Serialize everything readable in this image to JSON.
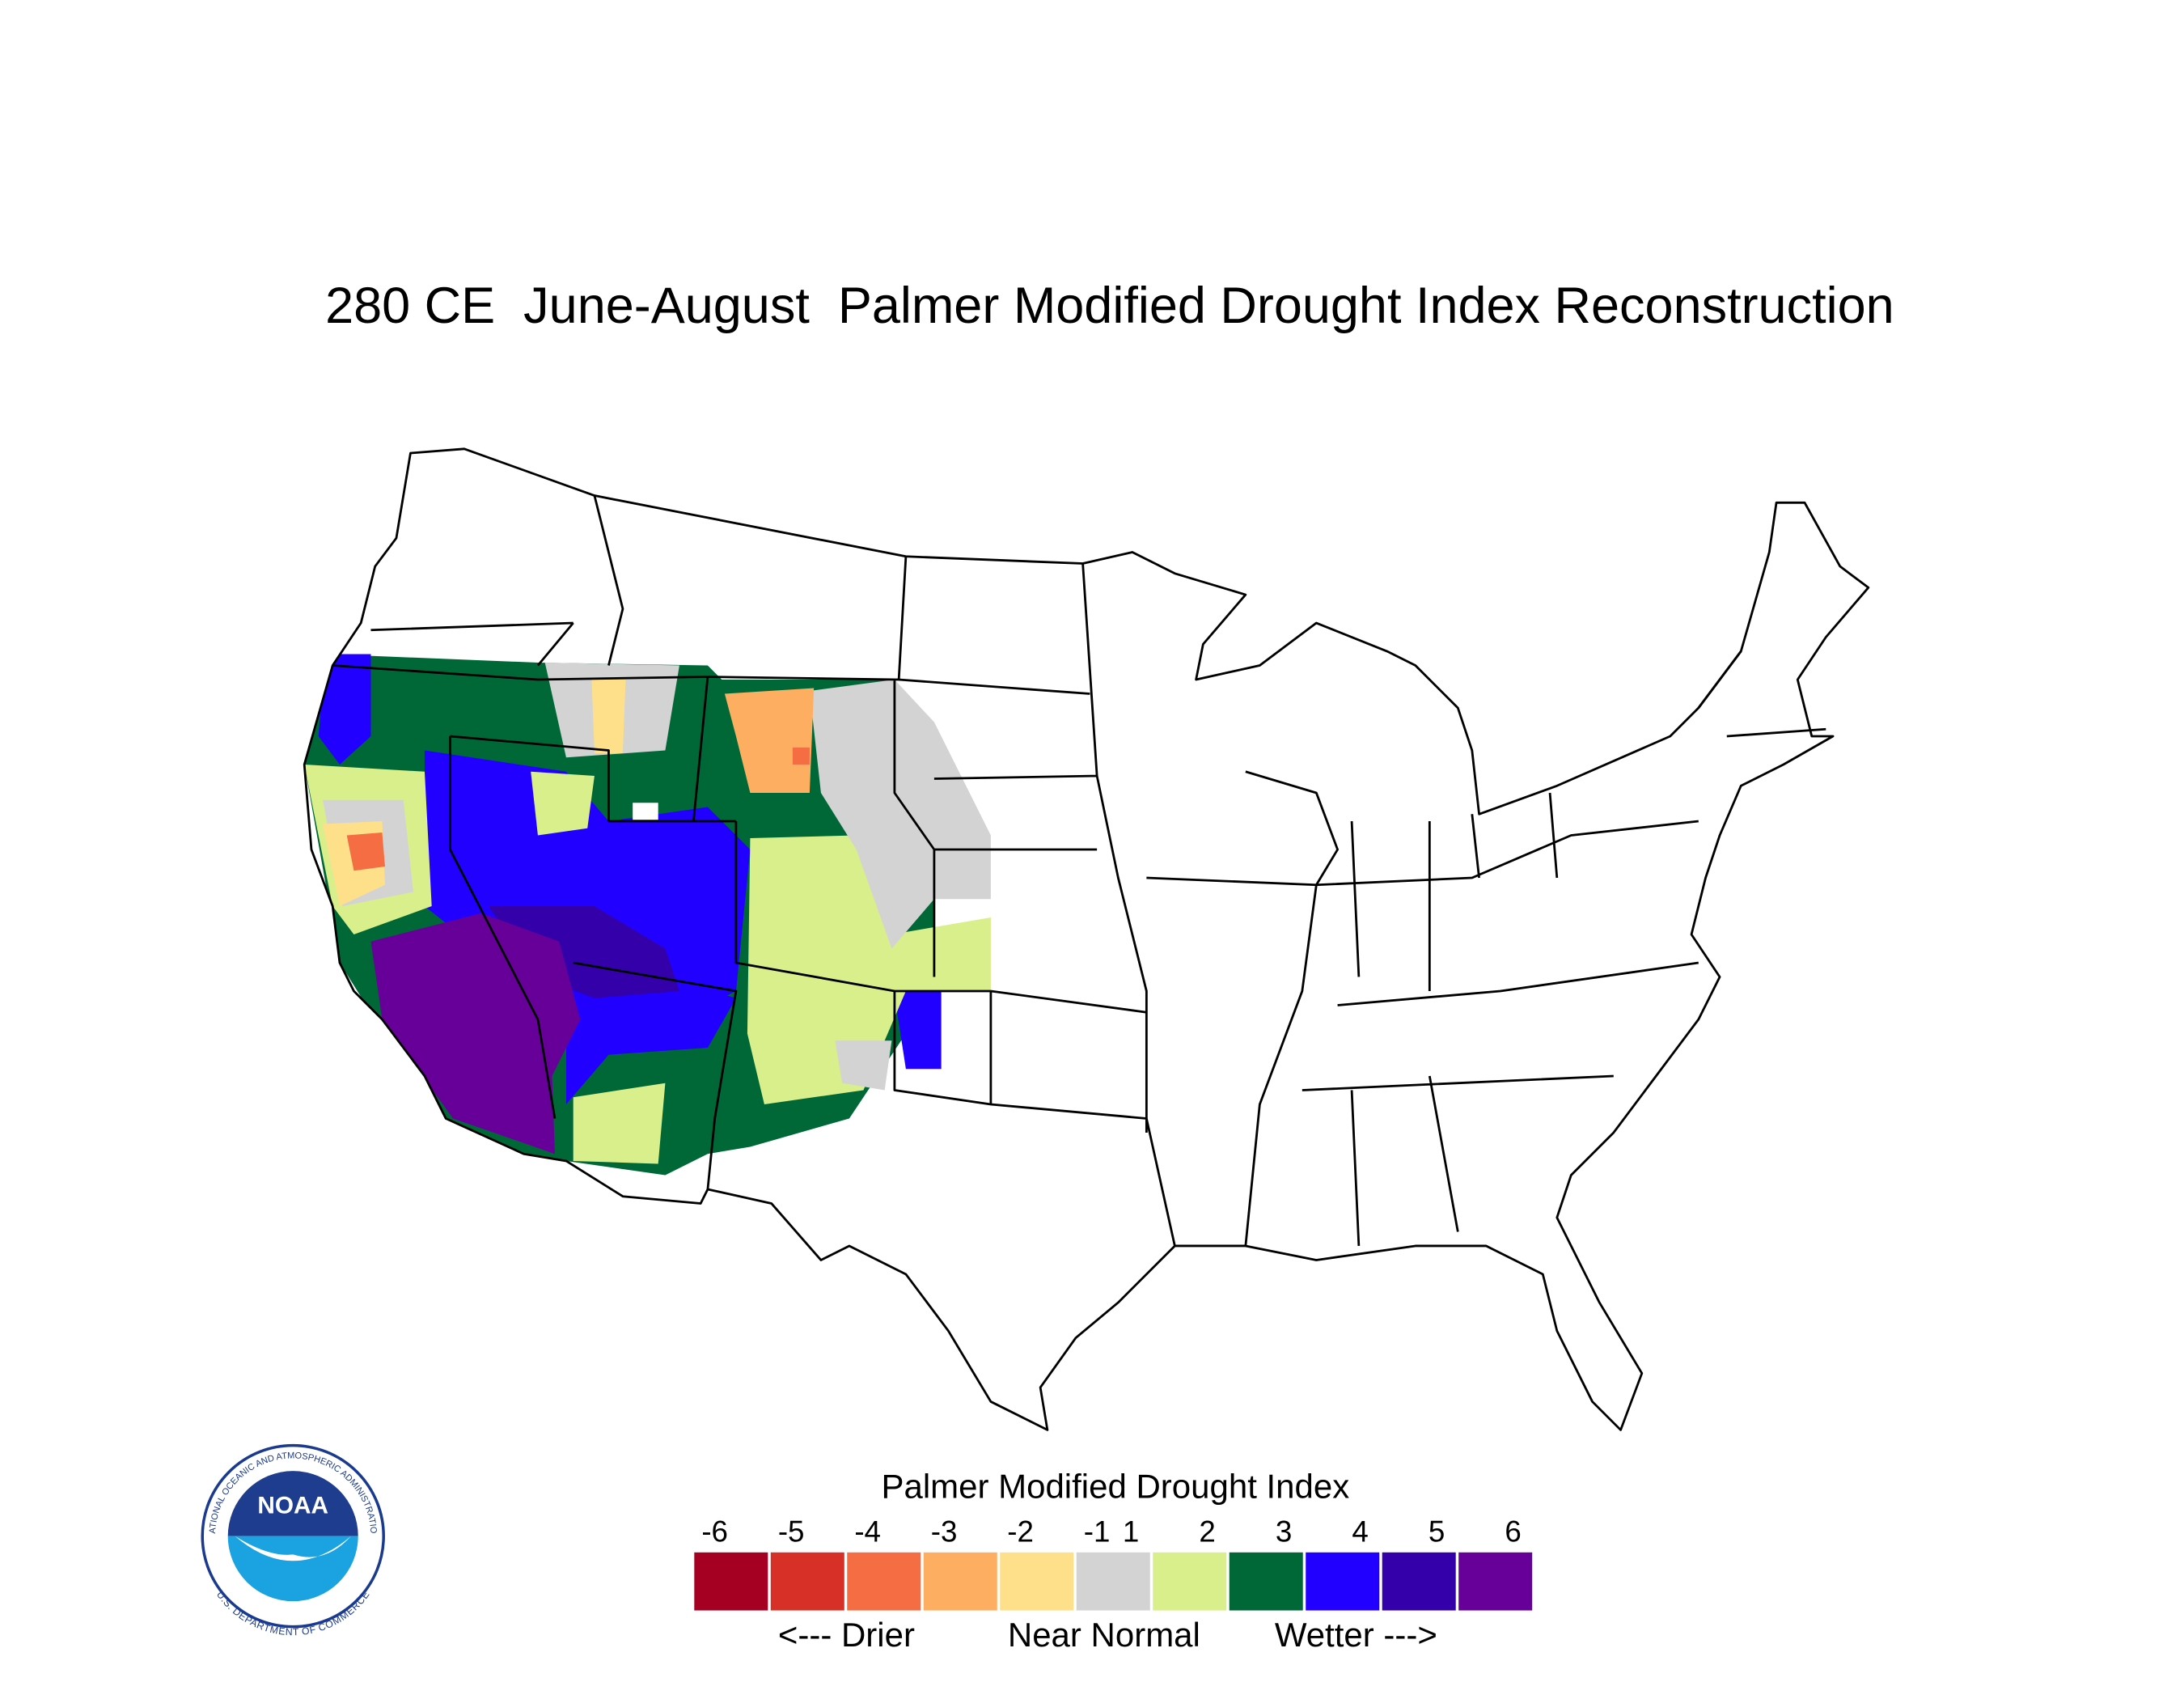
{
  "title": "280 CE  June-August  Palmer Modified Drought Index Reconstruction",
  "legend": {
    "title": "Palmer Modified Drought Index",
    "ticks": [
      -6,
      -5,
      -4,
      -3,
      -2,
      -1,
      1,
      2,
      3,
      4,
      5,
      6
    ],
    "colors": [
      "#a50021",
      "#d73027",
      "#f46d43",
      "#fdae61",
      "#fee08b",
      "#d3d3d3",
      "#d9ef8b",
      "#006837",
      "#2200ff",
      "#3300aa",
      "#660099"
    ],
    "labels": [
      "<--- Drier",
      "Near Normal",
      "Wetter --->"
    ]
  },
  "logo": {
    "name": "NOAA",
    "ring_top": "NATIONAL OCEANIC AND ATMOSPHERIC ADMINISTRATION",
    "ring_bottom": "U.S. DEPARTMENT OF COMMERCE"
  }
}
